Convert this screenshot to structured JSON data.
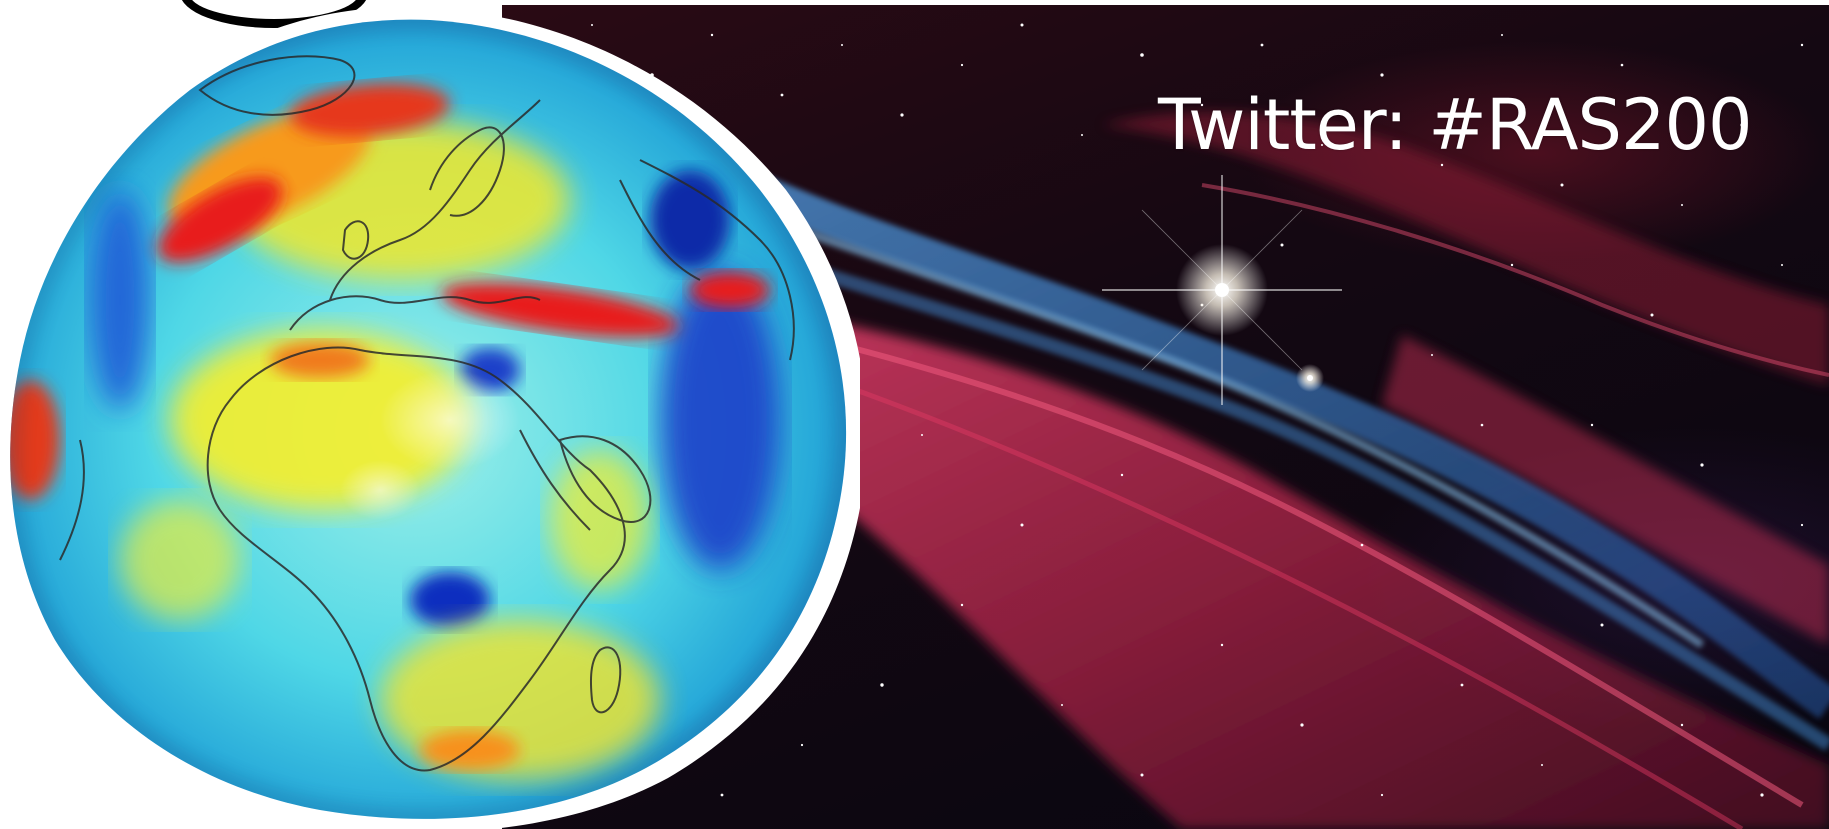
{
  "caption": {
    "text": "Twitter: #RAS200"
  },
  "scene": {
    "globe": {
      "icon": "geoid-globe",
      "description_colors": [
        "#0a2fbf",
        "#1fa8e8",
        "#57e3e1",
        "#f7ef2a",
        "#f79a1c",
        "#e81e1e"
      ]
    },
    "background": {
      "icon": "veil-nebula",
      "nebula_red": "#d6365a",
      "nebula_blue": "#3a8fd6",
      "star_color": "#ffffff"
    }
  }
}
